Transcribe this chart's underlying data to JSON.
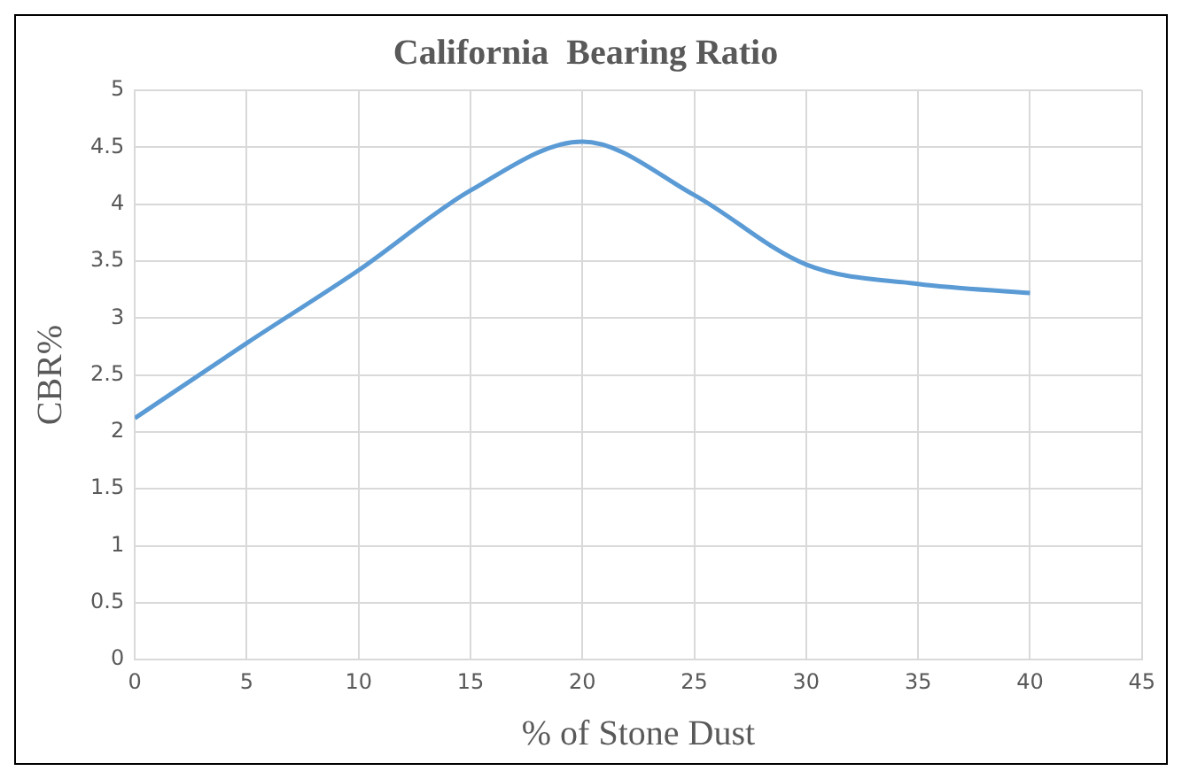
{
  "chart_data": {
    "type": "line",
    "title": "California  Bearing Ratio",
    "xlabel": "% of Stone Dust",
    "ylabel": "CBR%",
    "x": [
      0,
      5,
      10,
      15,
      20,
      25,
      30,
      35,
      40
    ],
    "series": [
      {
        "color": "#5b9bd5",
        "values": [
          2.12,
          2.78,
          3.42,
          4.12,
          4.55,
          4.08,
          3.47,
          3.3,
          3.22
        ]
      }
    ],
    "xlim": [
      0,
      45
    ],
    "xticks": [
      0,
      5,
      10,
      15,
      20,
      25,
      30,
      35,
      40,
      45
    ],
    "ylim": [
      0,
      5
    ],
    "yticks": [
      0,
      0.5,
      1,
      1.5,
      2,
      2.5,
      3,
      3.5,
      4,
      4.5,
      5
    ],
    "grid": true,
    "legend": false,
    "marker": "none",
    "line_style": "solid"
  }
}
